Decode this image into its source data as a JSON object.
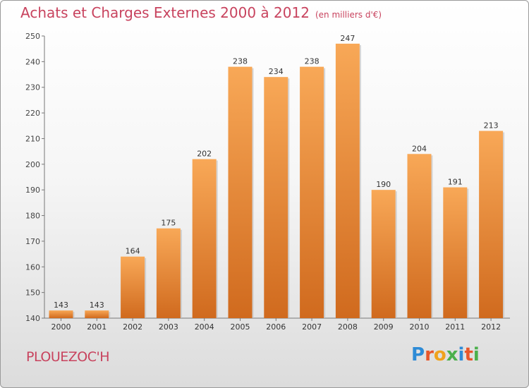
{
  "header": {
    "title": "Achats et Charges Externes 2000 à 2012",
    "unit": "(en milliers d'€)"
  },
  "footer": {
    "commune": "PLOUEZOC'H",
    "logo_text": "Proxiti",
    "logo_colors": [
      "#2e8bd6",
      "#e8562a",
      "#f0a21c",
      "#4bb04b",
      "#2e8bd6",
      "#e8562a",
      "#4bb04b"
    ]
  },
  "colors": {
    "accent": "#c8435e",
    "bar_light": "#f8a857",
    "bar_dark": "#d06a1e"
  },
  "chart_data": {
    "type": "bar",
    "title": "Achats et Charges Externes 2000 à 2012",
    "subtitle": "(en milliers d'€)",
    "categories": [
      "2000",
      "2001",
      "2002",
      "2003",
      "2004",
      "2005",
      "2006",
      "2007",
      "2008",
      "2009",
      "2010",
      "2011",
      "2012"
    ],
    "values": [
      143,
      143,
      164,
      175,
      202,
      238,
      234,
      238,
      247,
      190,
      204,
      191,
      213
    ],
    "ylim": [
      140,
      250
    ],
    "yticks": [
      140,
      150,
      160,
      170,
      180,
      190,
      200,
      210,
      220,
      230,
      240,
      250
    ],
    "grid": false,
    "data_labels": true
  }
}
